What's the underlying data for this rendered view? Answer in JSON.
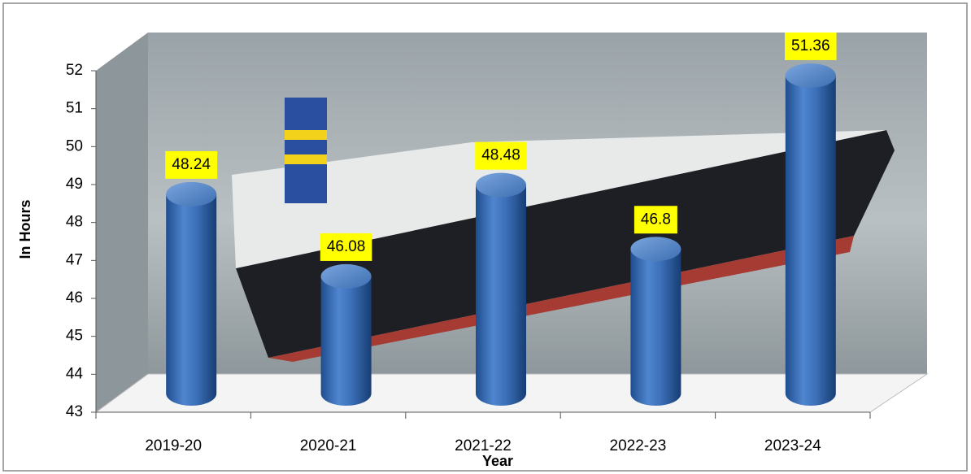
{
  "chart_data": {
    "type": "bar",
    "title": null,
    "x_label": "Year",
    "y_label": "In Hours",
    "categories": [
      "2019-20",
      "2020-21",
      "2021-22",
      "2022-23",
      "2023-24"
    ],
    "values": [
      48.24,
      46.08,
      48.48,
      46.8,
      51.36
    ],
    "color": "#3a6db5",
    "ylim": [
      43,
      52
    ],
    "yticks": [
      43,
      44,
      45,
      46,
      47,
      48,
      49,
      50,
      51,
      52
    ]
  }
}
